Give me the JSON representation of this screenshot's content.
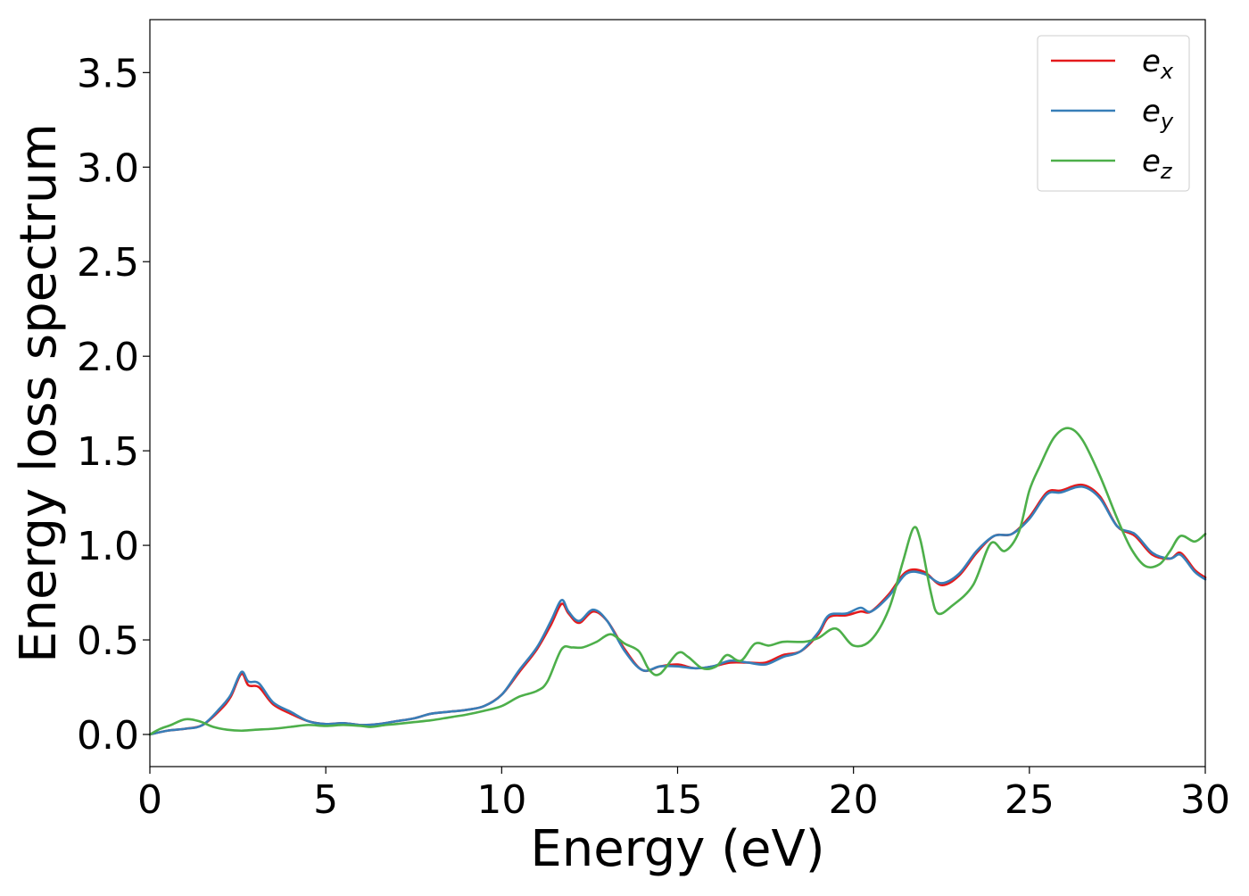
{
  "chart_data": {
    "type": "line",
    "title": "",
    "xlabel": "Energy (eV)",
    "ylabel": "Energy loss spectrum",
    "xlim": [
      0,
      30
    ],
    "ylim": [
      -0.17,
      3.78
    ],
    "xticks": [
      0,
      5,
      10,
      15,
      20,
      25,
      30
    ],
    "xtick_labels": [
      "0",
      "5",
      "10",
      "15",
      "20",
      "25",
      "30"
    ],
    "yticks": [
      0.0,
      0.5,
      1.0,
      1.5,
      2.0,
      2.5,
      3.0,
      3.5
    ],
    "ytick_labels": [
      "0.0",
      "0.5",
      "1.0",
      "1.5",
      "2.0",
      "2.5",
      "3.0",
      "3.5"
    ],
    "grid": false,
    "legend_position": "top-right",
    "series": [
      {
        "name": "e_x",
        "label_base": "e",
        "label_sub": "x",
        "color": "#e41a1c",
        "points": [
          [
            0,
            0
          ],
          [
            0.5,
            0.02
          ],
          [
            1,
            0.03
          ],
          [
            1.5,
            0.05
          ],
          [
            2,
            0.13
          ],
          [
            2.3,
            0.2
          ],
          [
            2.6,
            0.32
          ],
          [
            2.8,
            0.26
          ],
          [
            3.1,
            0.25
          ],
          [
            3.5,
            0.16
          ],
          [
            4,
            0.11
          ],
          [
            4.5,
            0.07
          ],
          [
            5,
            0.055
          ],
          [
            5.5,
            0.06
          ],
          [
            6,
            0.05
          ],
          [
            6.5,
            0.055
          ],
          [
            7,
            0.07
          ],
          [
            7.5,
            0.085
          ],
          [
            8,
            0.11
          ],
          [
            8.5,
            0.12
          ],
          [
            9,
            0.13
          ],
          [
            9.5,
            0.15
          ],
          [
            10,
            0.21
          ],
          [
            10.5,
            0.33
          ],
          [
            11,
            0.45
          ],
          [
            11.4,
            0.58
          ],
          [
            11.7,
            0.69
          ],
          [
            11.9,
            0.64
          ],
          [
            12.2,
            0.59
          ],
          [
            12.6,
            0.65
          ],
          [
            13,
            0.6
          ],
          [
            13.5,
            0.45
          ],
          [
            14,
            0.34
          ],
          [
            14.5,
            0.36
          ],
          [
            15,
            0.37
          ],
          [
            15.5,
            0.35
          ],
          [
            16,
            0.36
          ],
          [
            16.5,
            0.38
          ],
          [
            17,
            0.38
          ],
          [
            17.5,
            0.38
          ],
          [
            18,
            0.42
          ],
          [
            18.5,
            0.44
          ],
          [
            19,
            0.53
          ],
          [
            19.3,
            0.62
          ],
          [
            19.8,
            0.63
          ],
          [
            20.2,
            0.65
          ],
          [
            20.5,
            0.65
          ],
          [
            21,
            0.74
          ],
          [
            21.5,
            0.86
          ],
          [
            22,
            0.86
          ],
          [
            22.5,
            0.79
          ],
          [
            23,
            0.84
          ],
          [
            23.5,
            0.96
          ],
          [
            24,
            1.05
          ],
          [
            24.5,
            1.06
          ],
          [
            25,
            1.15
          ],
          [
            25.5,
            1.28
          ],
          [
            25.9,
            1.29
          ],
          [
            26.5,
            1.32
          ],
          [
            27,
            1.26
          ],
          [
            27.5,
            1.1
          ],
          [
            28,
            1.05
          ],
          [
            28.5,
            0.95
          ],
          [
            29,
            0.93
          ],
          [
            29.3,
            0.96
          ],
          [
            29.7,
            0.87
          ],
          [
            30,
            0.83
          ]
        ]
      },
      {
        "name": "e_y",
        "label_base": "e",
        "label_sub": "y",
        "color": "#377eb8",
        "points": [
          [
            0,
            0
          ],
          [
            0.5,
            0.02
          ],
          [
            1,
            0.03
          ],
          [
            1.5,
            0.05
          ],
          [
            2,
            0.14
          ],
          [
            2.3,
            0.21
          ],
          [
            2.6,
            0.33
          ],
          [
            2.8,
            0.28
          ],
          [
            3.1,
            0.27
          ],
          [
            3.5,
            0.17
          ],
          [
            4,
            0.12
          ],
          [
            4.5,
            0.07
          ],
          [
            5,
            0.055
          ],
          [
            5.5,
            0.06
          ],
          [
            6,
            0.05
          ],
          [
            6.5,
            0.055
          ],
          [
            7,
            0.07
          ],
          [
            7.5,
            0.085
          ],
          [
            8,
            0.11
          ],
          [
            8.5,
            0.12
          ],
          [
            9,
            0.13
          ],
          [
            9.5,
            0.15
          ],
          [
            10,
            0.21
          ],
          [
            10.5,
            0.34
          ],
          [
            11,
            0.46
          ],
          [
            11.4,
            0.6
          ],
          [
            11.7,
            0.71
          ],
          [
            11.9,
            0.65
          ],
          [
            12.2,
            0.6
          ],
          [
            12.6,
            0.66
          ],
          [
            13,
            0.6
          ],
          [
            13.5,
            0.44
          ],
          [
            14,
            0.34
          ],
          [
            14.5,
            0.36
          ],
          [
            15,
            0.36
          ],
          [
            15.5,
            0.35
          ],
          [
            16,
            0.36
          ],
          [
            16.5,
            0.39
          ],
          [
            17,
            0.38
          ],
          [
            17.5,
            0.37
          ],
          [
            18,
            0.41
          ],
          [
            18.5,
            0.44
          ],
          [
            19,
            0.54
          ],
          [
            19.3,
            0.63
          ],
          [
            19.8,
            0.64
          ],
          [
            20.2,
            0.67
          ],
          [
            20.5,
            0.65
          ],
          [
            21,
            0.73
          ],
          [
            21.5,
            0.85
          ],
          [
            22,
            0.85
          ],
          [
            22.5,
            0.8
          ],
          [
            23,
            0.85
          ],
          [
            23.5,
            0.97
          ],
          [
            24,
            1.05
          ],
          [
            24.5,
            1.06
          ],
          [
            25,
            1.14
          ],
          [
            25.5,
            1.27
          ],
          [
            25.9,
            1.28
          ],
          [
            26.5,
            1.31
          ],
          [
            27,
            1.25
          ],
          [
            27.5,
            1.1
          ],
          [
            28,
            1.06
          ],
          [
            28.5,
            0.96
          ],
          [
            29,
            0.93
          ],
          [
            29.3,
            0.95
          ],
          [
            29.7,
            0.86
          ],
          [
            30,
            0.82
          ]
        ]
      },
      {
        "name": "e_z",
        "label_base": "e",
        "label_sub": "z",
        "color": "#4daf4a",
        "points": [
          [
            0,
            0
          ],
          [
            0.3,
            0.03
          ],
          [
            0.6,
            0.05
          ],
          [
            1,
            0.08
          ],
          [
            1.4,
            0.07
          ],
          [
            1.8,
            0.04
          ],
          [
            2.2,
            0.025
          ],
          [
            2.6,
            0.02
          ],
          [
            3,
            0.025
          ],
          [
            3.5,
            0.03
          ],
          [
            4,
            0.04
          ],
          [
            4.5,
            0.05
          ],
          [
            5,
            0.045
          ],
          [
            5.5,
            0.05
          ],
          [
            6,
            0.045
          ],
          [
            6.3,
            0.04
          ],
          [
            6.7,
            0.05
          ],
          [
            7,
            0.055
          ],
          [
            7.5,
            0.065
          ],
          [
            8,
            0.075
          ],
          [
            8.5,
            0.09
          ],
          [
            9,
            0.105
          ],
          [
            9.5,
            0.125
          ],
          [
            10,
            0.15
          ],
          [
            10.5,
            0.2
          ],
          [
            11,
            0.23
          ],
          [
            11.3,
            0.28
          ],
          [
            11.7,
            0.45
          ],
          [
            12,
            0.46
          ],
          [
            12.3,
            0.46
          ],
          [
            12.7,
            0.49
          ],
          [
            13.1,
            0.53
          ],
          [
            13.5,
            0.48
          ],
          [
            13.9,
            0.44
          ],
          [
            14.2,
            0.34
          ],
          [
            14.5,
            0.32
          ],
          [
            15,
            0.43
          ],
          [
            15.3,
            0.41
          ],
          [
            15.7,
            0.35
          ],
          [
            16.1,
            0.36
          ],
          [
            16.4,
            0.42
          ],
          [
            16.8,
            0.39
          ],
          [
            17.2,
            0.48
          ],
          [
            17.6,
            0.47
          ],
          [
            18,
            0.49
          ],
          [
            18.6,
            0.49
          ],
          [
            19,
            0.51
          ],
          [
            19.5,
            0.56
          ],
          [
            20,
            0.47
          ],
          [
            20.5,
            0.5
          ],
          [
            21,
            0.66
          ],
          [
            21.4,
            0.91
          ],
          [
            21.7,
            1.09
          ],
          [
            21.9,
            1.03
          ],
          [
            22.2,
            0.75
          ],
          [
            22.4,
            0.64
          ],
          [
            22.8,
            0.68
          ],
          [
            23.4,
            0.79
          ],
          [
            23.9,
            1.01
          ],
          [
            24.3,
            0.97
          ],
          [
            24.7,
            1.07
          ],
          [
            25,
            1.29
          ],
          [
            25.3,
            1.42
          ],
          [
            25.7,
            1.57
          ],
          [
            26.1,
            1.62
          ],
          [
            26.5,
            1.56
          ],
          [
            27,
            1.37
          ],
          [
            27.5,
            1.14
          ],
          [
            27.9,
            0.98
          ],
          [
            28.3,
            0.89
          ],
          [
            28.7,
            0.9
          ],
          [
            29,
            0.97
          ],
          [
            29.3,
            1.05
          ],
          [
            29.7,
            1.02
          ],
          [
            30,
            1.06
          ]
        ]
      }
    ]
  }
}
